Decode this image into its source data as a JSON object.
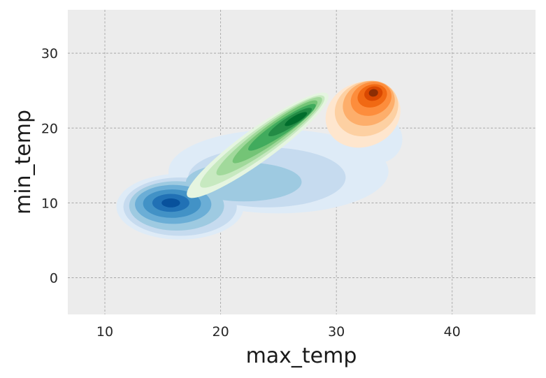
{
  "chart_data": {
    "type": "kde-contour",
    "title": "",
    "xlabel": "max_temp",
    "ylabel": "min_temp",
    "xlim": [
      6.8,
      47.2
    ],
    "ylim": [
      -4.9,
      35.8
    ],
    "xticks": [
      10,
      20,
      30,
      40
    ],
    "yticks": [
      0,
      10,
      20,
      30
    ],
    "grid": true,
    "legend": "none",
    "colors": {
      "background": "#ececec",
      "grid": "#a6a6a6"
    },
    "series": [
      {
        "colormap": "Blues",
        "colors": [
          "#deebf7",
          "#c6dbef",
          "#9ecae1",
          "#6baed6",
          "#4292c6",
          "#2171b5",
          "#08519c"
        ],
        "peak": {
          "x": 15.8,
          "y": 10.0
        },
        "levels": [
          {
            "offset": [
              0,
              0
            ],
            "components": [
              {
                "center": [
                  16.5,
                  9.5
                ],
                "rx": 5.5,
                "ry": 4.4
              },
              {
                "center": [
                  25,
                  14.2
                ],
                "rx": 9.5,
                "ry": 5.6
              },
              {
                "center": [
                  33.5,
                  18.5
                ],
                "rx": 2.2,
                "ry": 3.2
              }
            ]
          },
          {
            "offset": [
              0,
              0
            ],
            "components": [
              {
                "center": [
                  16.5,
                  9.5
                ],
                "rx": 4.9,
                "ry": 3.9
              },
              {
                "center": [
                  24,
                  13.4
                ],
                "rx": 6.8,
                "ry": 4.0
              }
            ]
          },
          {
            "offset": [
              0,
              0
            ],
            "components": [
              {
                "center": [
                  16.2,
                  9.6
                ],
                "rx": 4.1,
                "ry": 3.3
              },
              {
                "center": [
                  22,
                  12.8
                ],
                "rx": 5.0,
                "ry": 2.6
              }
            ]
          },
          {
            "offset": [
              0,
              0
            ],
            "components": [
              {
                "center": [
                  15.9,
                  9.8
                ],
                "rx": 3.3,
                "ry": 2.6
              }
            ]
          },
          {
            "offset": [
              0,
              0
            ],
            "components": [
              {
                "center": [
                  15.8,
                  9.9
                ],
                "rx": 2.5,
                "ry": 1.9
              }
            ]
          },
          {
            "offset": [
              0,
              0
            ],
            "components": [
              {
                "center": [
                  15.7,
                  10.0
                ],
                "rx": 1.6,
                "ry": 1.2
              }
            ]
          },
          {
            "offset": [
              0,
              0
            ],
            "components": [
              {
                "center": [
                  15.7,
                  10.0
                ],
                "rx": 0.8,
                "ry": 0.6
              }
            ]
          }
        ]
      },
      {
        "colormap": "Greens",
        "colors": [
          "#e5f5e0",
          "#c7e9c0",
          "#a1d99b",
          "#74c476",
          "#41ab5d",
          "#238b45",
          "#006d2c"
        ],
        "peak": {
          "x": 26.5,
          "y": 21.0
        },
        "levels": [
          {
            "components": [
              {
                "center": [
                  23.2,
                  17.7
                ],
                "rx": 7.5,
                "ry": 2.2,
                "angle": 36
              }
            ]
          },
          {
            "components": [
              {
                "center": [
                  23.6,
                  18.2
                ],
                "rx": 6.6,
                "ry": 1.8,
                "angle": 36
              }
            ]
          },
          {
            "components": [
              {
                "center": [
                  24.2,
                  18.9
                ],
                "rx": 5.6,
                "ry": 1.5,
                "angle": 36
              }
            ]
          },
          {
            "components": [
              {
                "center": [
                  24.7,
                  19.5
                ],
                "rx": 4.5,
                "ry": 1.2,
                "angle": 36
              }
            ]
          },
          {
            "components": [
              {
                "center": [
                  25.3,
                  20.1
                ],
                "rx": 3.5,
                "ry": 0.95,
                "angle": 34
              }
            ]
          },
          {
            "components": [
              {
                "center": [
                  26.0,
                  20.8
                ],
                "rx": 2.2,
                "ry": 0.7,
                "angle": 32
              }
            ]
          },
          {
            "components": [
              {
                "center": [
                  26.5,
                  21.2
                ],
                "rx": 1.1,
                "ry": 0.45,
                "angle": 30
              }
            ]
          }
        ]
      },
      {
        "colormap": "Oranges",
        "colors": [
          "#fee6ce",
          "#fdd0a2",
          "#fdae6b",
          "#fd8d3c",
          "#f16913",
          "#d94801",
          "#8c2d04"
        ],
        "peak": {
          "x": 33.2,
          "y": 24.6
        },
        "levels": [
          {
            "components": [
              {
                "center": [
                  32.3,
                  21.8
                ],
                "rx": 3.3,
                "ry": 4.3,
                "angle": 22
              }
            ]
          },
          {
            "components": [
              {
                "center": [
                  32.6,
                  22.6
                ],
                "rx": 2.8,
                "ry": 3.6,
                "angle": 22
              }
            ]
          },
          {
            "components": [
              {
                "center": [
                  32.8,
                  23.3
                ],
                "rx": 2.3,
                "ry": 2.9,
                "angle": 22
              }
            ]
          },
          {
            "components": [
              {
                "center": [
                  33.0,
                  23.9
                ],
                "rx": 1.8,
                "ry": 2.2,
                "angle": 20
              }
            ]
          },
          {
            "components": [
              {
                "center": [
                  33.1,
                  24.3
                ],
                "rx": 1.3,
                "ry": 1.5,
                "angle": 18
              }
            ]
          },
          {
            "components": [
              {
                "center": [
                  33.2,
                  24.6
                ],
                "rx": 0.8,
                "ry": 0.95,
                "angle": 15
              }
            ]
          },
          {
            "components": [
              {
                "center": [
                  33.2,
                  24.7
                ],
                "rx": 0.4,
                "ry": 0.5,
                "angle": 10
              }
            ]
          }
        ]
      }
    ]
  }
}
